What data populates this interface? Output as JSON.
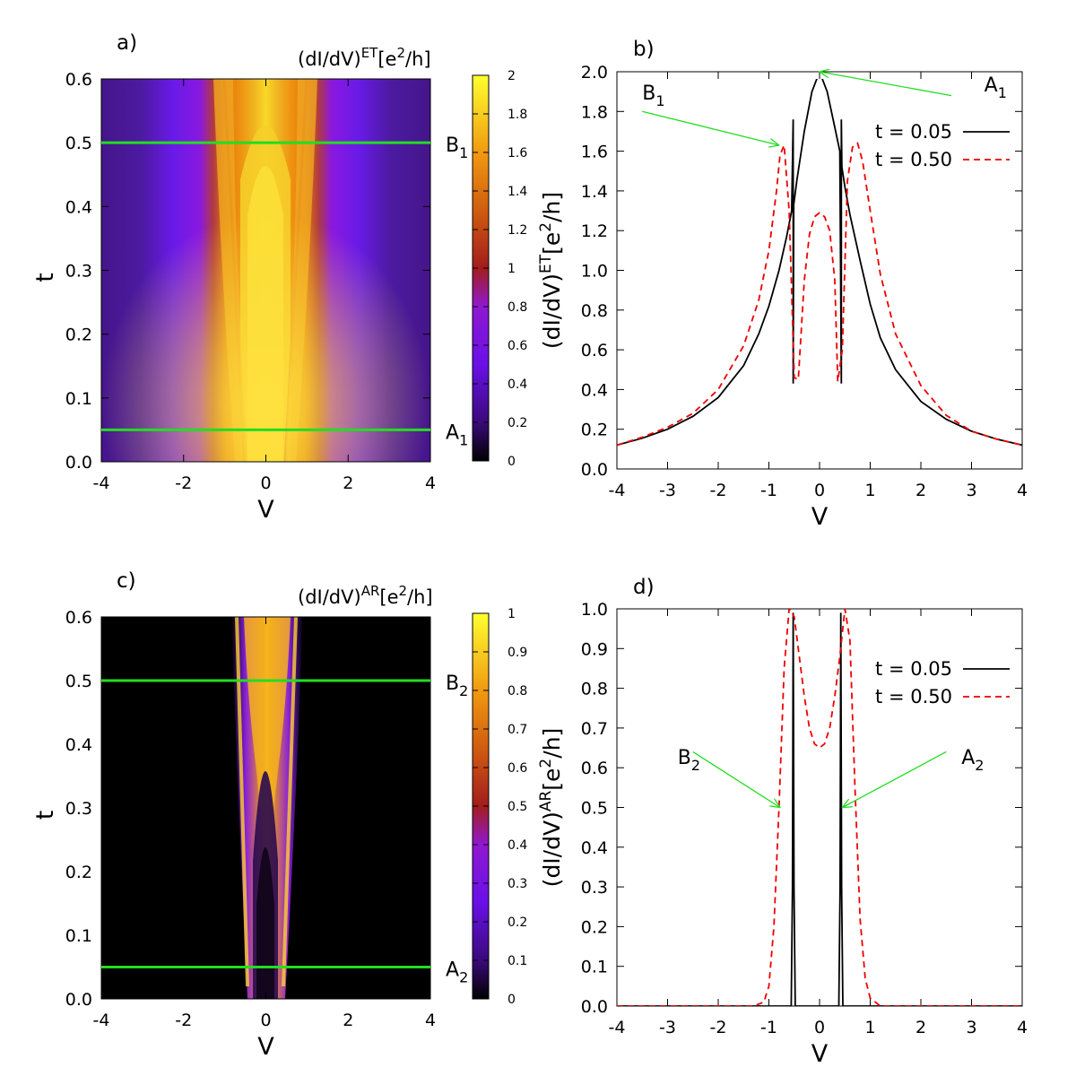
{
  "chart_data": [
    {
      "id": "a",
      "type": "heatmap",
      "panel_label": "a)",
      "title": "(dI/dV)^ET[e^2/h]",
      "title_parts": {
        "base": "(dI/dV)",
        "sup": "ET",
        "pre": "[e",
        "sup2": "2",
        "post": "/h]"
      },
      "xlabel": "V",
      "ylabel": "t",
      "xlim": [
        -4,
        4
      ],
      "ylim": [
        0,
        0.6
      ],
      "xticks": [
        "-4",
        "-2",
        "0",
        "2",
        "4"
      ],
      "yticks": [
        "0.0",
        "0.1",
        "0.2",
        "0.3",
        "0.4",
        "0.5",
        "0.6"
      ],
      "colorbar": {
        "range": [
          0,
          2
        ],
        "ticks": [
          "0",
          "0.2",
          "0.4",
          "0.6",
          "0.8",
          "1",
          "1.2",
          "1.4",
          "1.6",
          "1.8",
          "2"
        ]
      },
      "hlines": [
        {
          "t": 0.05,
          "label": "A",
          "sub": "1"
        },
        {
          "t": 0.5,
          "label": "B",
          "sub": "1"
        }
      ],
      "line_color": "#22dd22"
    },
    {
      "id": "b",
      "type": "line",
      "panel_label": "b)",
      "xlabel": "V",
      "ylabel": "(dI/dV)^ET[e^2/h]",
      "ylabel_parts": {
        "base": "(dI/dV)",
        "sup": "ET",
        "pre": "[e",
        "sup2": "2",
        "post": "/h]"
      },
      "xlim": [
        -4,
        4
      ],
      "ylim": [
        0,
        2
      ],
      "xticks": [
        "-4",
        "-3",
        "-2",
        "-1",
        "0",
        "1",
        "2",
        "3",
        "4"
      ],
      "yticks": [
        "0.0",
        "0.2",
        "0.4",
        "0.6",
        "0.8",
        "1.0",
        "1.2",
        "1.4",
        "1.6",
        "1.8",
        "2.0"
      ],
      "series": [
        {
          "name": "t = 0.05",
          "style": "solid",
          "color": "#000000",
          "x": [
            -4,
            -3.5,
            -3,
            -2.5,
            -2,
            -1.5,
            -1.2,
            -1,
            -0.8,
            -0.65,
            -0.55,
            -0.52,
            -0.52,
            -0.51,
            -0.45,
            -0.3,
            -0.15,
            0,
            0.15,
            0.3,
            0.4,
            0.43,
            0.43,
            0.44,
            0.5,
            0.6,
            0.8,
            1,
            1.2,
            1.5,
            2,
            2.5,
            3,
            3.5,
            4
          ],
          "y": [
            0.12,
            0.155,
            0.2,
            0.265,
            0.36,
            0.52,
            0.68,
            0.82,
            1.0,
            1.17,
            1.3,
            1.76,
            0.43,
            1.33,
            1.45,
            1.7,
            1.9,
            2.0,
            1.9,
            1.72,
            1.6,
            0.43,
            1.76,
            1.52,
            1.42,
            1.28,
            1.05,
            0.83,
            0.66,
            0.5,
            0.34,
            0.25,
            0.19,
            0.15,
            0.12
          ]
        },
        {
          "name": "t = 0.50",
          "style": "dashed",
          "color": "#ee0000",
          "x": [
            -4,
            -3.5,
            -3,
            -2.5,
            -2,
            -1.5,
            -1.2,
            -1,
            -0.85,
            -0.78,
            -0.7,
            -0.6,
            -0.5,
            -0.42,
            -0.3,
            -0.2,
            -0.1,
            0,
            0.1,
            0.2,
            0.3,
            0.36,
            0.45,
            0.55,
            0.65,
            0.75,
            0.85,
            1,
            1.2,
            1.5,
            2,
            2.5,
            3,
            3.5,
            4
          ],
          "y": [
            0.12,
            0.16,
            0.21,
            0.28,
            0.4,
            0.62,
            0.85,
            1.1,
            1.4,
            1.58,
            1.63,
            1.3,
            0.46,
            0.45,
            0.95,
            1.18,
            1.27,
            1.29,
            1.27,
            1.2,
            0.95,
            0.44,
            0.6,
            1.45,
            1.62,
            1.64,
            1.55,
            1.3,
            0.98,
            0.68,
            0.42,
            0.27,
            0.19,
            0.15,
            0.12
          ]
        }
      ],
      "legend": "top-right",
      "annotations": [
        {
          "label": "A",
          "sub": "1",
          "text_at": [
            3.25,
            1.9
          ],
          "arrow_from": [
            2.6,
            1.88
          ],
          "arrow_to": [
            0,
            2.0
          ]
        },
        {
          "label": "B",
          "sub": "1",
          "text_at": [
            -3.5,
            1.86
          ],
          "arrow_from": [
            -3.5,
            1.8
          ],
          "arrow_to": [
            -0.8,
            1.63
          ]
        }
      ],
      "annotation_color": "#22dd22"
    },
    {
      "id": "c",
      "type": "heatmap",
      "panel_label": "c)",
      "title": "(dI/dV)^AR[e^2/h]",
      "title_parts": {
        "base": "(dI/dV)",
        "sup": "AR",
        "pre": "[e",
        "sup2": "2",
        "post": "/h]"
      },
      "xlabel": "V",
      "ylabel": "t",
      "xlim": [
        -4,
        4
      ],
      "ylim": [
        0,
        0.6
      ],
      "xticks": [
        "-4",
        "-2",
        "0",
        "2",
        "4"
      ],
      "yticks": [
        "0.0",
        "0.1",
        "0.2",
        "0.3",
        "0.4",
        "0.5",
        "0.6"
      ],
      "colorbar": {
        "range": [
          0,
          1
        ],
        "ticks": [
          "0",
          "0.1",
          "0.2",
          "0.3",
          "0.4",
          "0.5",
          "0.6",
          "0.7",
          "0.8",
          "0.9",
          "1"
        ]
      },
      "hlines": [
        {
          "t": 0.05,
          "label": "A",
          "sub": "2"
        },
        {
          "t": 0.5,
          "label": "B",
          "sub": "2"
        }
      ],
      "line_color": "#22dd22"
    },
    {
      "id": "d",
      "type": "line",
      "panel_label": "d)",
      "xlabel": "V",
      "ylabel": "(dI/dV)^AR[e^2/h]",
      "ylabel_parts": {
        "base": "(dI/dV)",
        "sup": "AR",
        "pre": "[e",
        "sup2": "2",
        "post": "/h]"
      },
      "xlim": [
        -4,
        4
      ],
      "ylim": [
        0,
        1
      ],
      "xticks": [
        "-4",
        "-3",
        "-2",
        "-1",
        "0",
        "1",
        "2",
        "3",
        "4"
      ],
      "yticks": [
        "0.0",
        "0.1",
        "0.2",
        "0.3",
        "0.4",
        "0.5",
        "0.6",
        "0.7",
        "0.8",
        "0.9",
        "1.0"
      ],
      "series": [
        {
          "name": "t = 0.05",
          "style": "solid",
          "color": "#000000",
          "x": [
            -4,
            -0.56,
            -0.535,
            -0.52,
            -0.505,
            -0.48,
            0.38,
            0.405,
            0.42,
            0.435,
            0.46,
            4
          ],
          "y": [
            0,
            0,
            0.3,
            0.99,
            0.3,
            0,
            0,
            0.3,
            0.99,
            0.3,
            0,
            0
          ]
        },
        {
          "name": "t = 0.50",
          "style": "dashed",
          "color": "#ee0000",
          "x": [
            -4,
            -1.3,
            -1.1,
            -1.0,
            -0.9,
            -0.8,
            -0.7,
            -0.6,
            -0.5,
            -0.4,
            -0.3,
            -0.2,
            -0.1,
            0,
            0.1,
            0.2,
            0.3,
            0.4,
            0.5,
            0.6,
            0.7,
            0.8,
            0.9,
            1.0,
            1.2,
            4
          ],
          "y": [
            0,
            0,
            0.01,
            0.05,
            0.2,
            0.5,
            0.85,
            1.0,
            0.98,
            0.88,
            0.78,
            0.7,
            0.66,
            0.65,
            0.66,
            0.7,
            0.78,
            0.88,
            1.0,
            0.92,
            0.55,
            0.22,
            0.07,
            0.02,
            0,
            0
          ]
        }
      ],
      "legend": "top-right",
      "annotations": [
        {
          "label": "A",
          "sub": "2",
          "text_at": [
            2.8,
            0.61
          ],
          "arrow_from": [
            2.5,
            0.64
          ],
          "arrow_to": [
            0.45,
            0.5
          ]
        },
        {
          "label": "B",
          "sub": "2",
          "text_at": [
            -2.8,
            0.61
          ],
          "arrow_from": [
            -2.5,
            0.64
          ],
          "arrow_to": [
            -0.78,
            0.5
          ]
        }
      ],
      "annotation_color": "#22dd22"
    }
  ]
}
